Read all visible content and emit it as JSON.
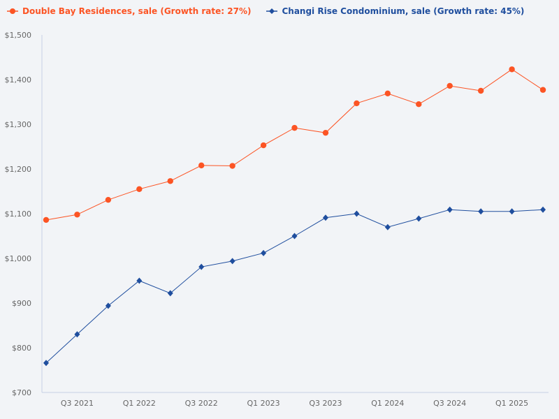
{
  "chart_data": {
    "type": "line",
    "title": "",
    "xlabel": "",
    "ylabel": "",
    "ylim": [
      700,
      1500
    ],
    "y_ticks": [
      "$700",
      "$800",
      "$900",
      "$1,000",
      "$1,100",
      "$1,200",
      "$1,300",
      "$1,400",
      "$1,500"
    ],
    "y_tick_values": [
      700,
      800,
      900,
      1000,
      1100,
      1200,
      1300,
      1400,
      1500
    ],
    "grid": false,
    "legend_placement": "top-left",
    "x": [
      "Q2 2021",
      "Q3 2021",
      "Q4 2021",
      "Q1 2022",
      "Q2 2022",
      "Q3 2022",
      "Q4 2022",
      "Q1 2023",
      "Q2 2023",
      "Q3 2023",
      "Q4 2023",
      "Q1 2024",
      "Q2 2024",
      "Q3 2024",
      "Q4 2024",
      "Q1 2025",
      "Q2 2025"
    ],
    "x_tick_labels": [
      "Q3 2021",
      "Q1 2022",
      "Q3 2022",
      "Q1 2023",
      "Q3 2023",
      "Q1 2024",
      "Q3 2024",
      "Q1 2025"
    ],
    "series": [
      {
        "name": "Double Bay Residences, sale (Growth rate: 27%)",
        "color": "#fc5424",
        "marker": "circle",
        "values": [
          1086,
          1098,
          1131,
          1155,
          1173,
          1208,
          1207,
          1253,
          1292,
          1281,
          1347,
          1369,
          1345,
          1386,
          1375,
          1423,
          1377
        ]
      },
      {
        "name": "Changi Rise Condominium, sale (Growth rate: 45%)",
        "color": "#1f4e9e",
        "marker": "diamond",
        "values": [
          766,
          830,
          894,
          950,
          922,
          981,
          994,
          1012,
          1050,
          1091,
          1100,
          1070,
          1089,
          1109,
          1105,
          1105,
          1109
        ]
      }
    ]
  }
}
